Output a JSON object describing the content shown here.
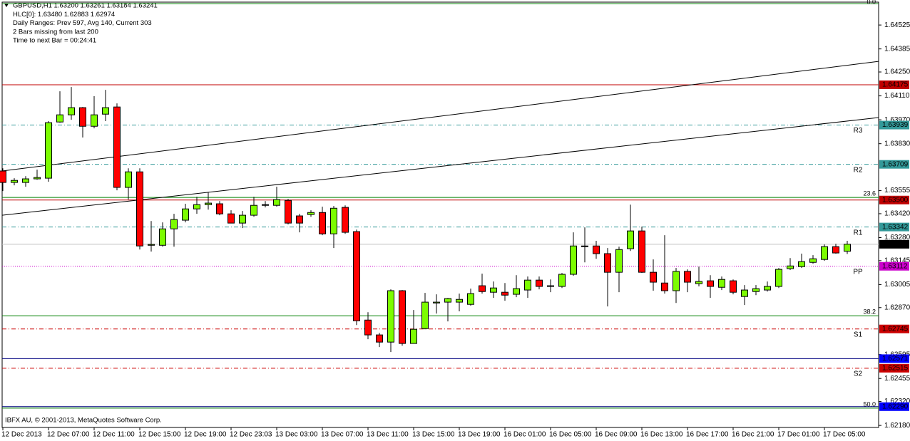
{
  "chart_data": {
    "type": "candlestick",
    "header": [
      "GBPUSD,H1  1.63200 1.63261 1.63184 1.63241",
      "HLC[0]: 1.63480 1.62883 1.62974",
      "Daily Ranges:  Prev 597,  Avg 140,   Current 303",
      "2 Bars missing from last 200",
      "Time to next Bar = 00:24:41"
    ],
    "footer": "IBFX AU, © 2001-2013, MetaQuotes Software Corp.",
    "categories": [
      "12 Dec 2013",
      null,
      null,
      null,
      "12 Dec 07:00",
      null,
      null,
      null,
      "12 Dec 11:00",
      null,
      null,
      null,
      "12 Dec 15:00",
      null,
      null,
      null,
      "12 Dec 19:00",
      null,
      null,
      null,
      "12 Dec 23:03",
      null,
      null,
      null,
      "13 Dec 03:00",
      null,
      null,
      null,
      "13 Dec 07:00",
      null,
      null,
      null,
      "13 Dec 11:00",
      null,
      null,
      null,
      "13 Dec 15:00",
      null,
      null,
      null,
      "13 Dec 19:00",
      null,
      null,
      null,
      "16 Dec 01:00",
      null,
      null,
      null,
      "16 Dec 05:00",
      null,
      null,
      null,
      "16 Dec 09:00",
      null,
      null,
      null,
      "16 Dec 13:00",
      null,
      null,
      null,
      "16 Dec 17:00",
      null,
      null,
      null,
      "16 Dec 21:00",
      null,
      null,
      null,
      "17 Dec 01:00",
      null,
      null,
      null,
      "17 Dec 05:00",
      null,
      null
    ],
    "open": [
      1.6367,
      1.63603,
      1.63603,
      1.63624,
      1.63628,
      1.63957,
      1.63999,
      1.64041,
      1.63932,
      1.64003,
      1.64045,
      1.63574,
      1.63665,
      1.63235,
      1.63235,
      1.63331,
      1.63382,
      1.63448,
      1.63473,
      1.63478,
      1.63419,
      1.63365,
      1.63411,
      1.63469,
      1.63469,
      1.63498,
      1.63407,
      1.63415,
      1.63427,
      1.63302,
      1.63457,
      1.63315,
      1.62797,
      1.6271,
      1.62668,
      1.62969,
      1.6266,
      1.62747,
      1.62897,
      1.62902,
      1.62902,
      1.62889,
      1.62998,
      1.6296,
      1.6296,
      1.62948,
      1.62973,
      1.63031,
      1.62998,
      1.62994,
      1.63065,
      1.63227,
      1.63231,
      1.63186,
      1.63077,
      1.63215,
      1.63319,
      1.63077,
      1.63014,
      1.62969,
      1.63082,
      1.6301,
      1.63027,
      1.62989,
      1.63027,
      1.62935,
      1.62964,
      1.62973,
      1.62994,
      1.63098,
      1.6311,
      1.63135,
      1.63152,
      1.63227,
      1.632
    ],
    "high": [
      1.63686,
      1.63628,
      1.6364,
      1.63678,
      1.63962,
      1.64137,
      1.64162,
      1.64045,
      1.64108,
      1.64145,
      1.64066,
      1.63686,
      1.63686,
      1.63377,
      1.63369,
      1.63419,
      1.63478,
      1.63519,
      1.63544,
      1.63494,
      1.6344,
      1.63436,
      1.63519,
      1.63494,
      1.63578,
      1.63507,
      1.63419,
      1.6344,
      1.63461,
      1.63465,
      1.63469,
      1.63327,
      1.62843,
      1.62722,
      1.62977,
      1.62973,
      1.62856,
      1.62956,
      1.62948,
      1.62927,
      1.62952,
      1.62981,
      1.63069,
      1.63023,
      1.63014,
      1.6306,
      1.63052,
      1.63052,
      1.63035,
      1.63073,
      1.63311,
      1.6334,
      1.63261,
      1.63219,
      1.63227,
      1.63473,
      1.63344,
      1.63152,
      1.63294,
      1.63102,
      1.63094,
      1.6311,
      1.6306,
      1.63052,
      1.63035,
      1.63002,
      1.63002,
      1.63023,
      1.63102,
      1.6316,
      1.63186,
      1.63177,
      1.6324,
      1.63244,
      1.63261
    ],
    "low": [
      1.63553,
      1.63586,
      1.63578,
      1.63619,
      1.63607,
      1.63953,
      1.6397,
      1.63866,
      1.6392,
      1.63962,
      1.63557,
      1.63503,
      1.6321,
      1.63198,
      1.63227,
      1.63227,
      1.63369,
      1.63419,
      1.63444,
      1.63411,
      1.63365,
      1.63336,
      1.63402,
      1.63457,
      1.63461,
      1.63357,
      1.63311,
      1.63402,
      1.63294,
      1.63219,
      1.63302,
      1.62768,
      1.62685,
      1.62639,
      1.6261,
      1.62647,
      1.6266,
      1.62743,
      1.62835,
      1.62789,
      1.62848,
      1.62881,
      1.62952,
      1.62927,
      1.6291,
      1.62931,
      1.62927,
      1.62977,
      1.6296,
      1.62985,
      1.63056,
      1.63135,
      1.63156,
      1.62877,
      1.6296,
      1.63202,
      1.63073,
      1.62969,
      1.62952,
      1.62897,
      1.6296,
      1.62994,
      1.62927,
      1.62973,
      1.62948,
      1.62885,
      1.62943,
      1.62964,
      1.62985,
      1.6309,
      1.63102,
      1.63127,
      1.63144,
      1.63186,
      1.63184
    ],
    "close": [
      1.63603,
      1.63615,
      1.63624,
      1.63632,
      1.63953,
      1.63999,
      1.64041,
      1.63932,
      1.63999,
      1.64041,
      1.63574,
      1.63665,
      1.63231,
      1.6324,
      1.63331,
      1.63386,
      1.63448,
      1.63473,
      1.63482,
      1.63419,
      1.63365,
      1.63411,
      1.63469,
      1.63473,
      1.63503,
      1.63365,
      1.63365,
      1.63427,
      1.63302,
      1.63452,
      1.63311,
      1.62793,
      1.6271,
      1.62668,
      1.62969,
      1.6266,
      1.62743,
      1.62902,
      1.62902,
      1.62923,
      1.62918,
      1.62952,
      1.62964,
      1.62985,
      1.62943,
      1.62981,
      1.63031,
      1.62994,
      1.62994,
      1.63065,
      1.63231,
      1.63231,
      1.63186,
      1.63077,
      1.6321,
      1.63319,
      1.63077,
      1.63019,
      1.62969,
      1.63082,
      1.63019,
      1.63023,
      1.62994,
      1.63035,
      1.6296,
      1.62973,
      1.62981,
      1.62994,
      1.63094,
      1.63114,
      1.63139,
      1.63156,
      1.63227,
      1.6319,
      1.63241
    ],
    "up_color": "#7cfc00",
    "down_color": "#ff0000",
    "ylim": [
      1.62168,
      1.64659
    ],
    "yticks": [
      1.64525,
      1.64385,
      {
        "value": 1.6425,
        "label": "1.64250"
      },
      {
        "value": 1.6411,
        "label": "1.64110"
      },
      {
        "value": 1.6397,
        "label": "1.63970"
      },
      {
        "value": 1.6383,
        "label": "1.63830"
      },
      1.63555,
      {
        "value": 1.6342,
        "label": "1.63420"
      },
      {
        "value": 1.6328,
        "label": "1.63280"
      },
      1.63145,
      1.63005,
      {
        "value": 1.6287,
        "label": "1.62870"
      },
      1.62595,
      1.62455,
      {
        "value": 1.6232,
        "label": "1.62320"
      },
      {
        "value": 1.6218,
        "label": "1.62180"
      }
    ],
    "grid": false,
    "fib_color": "#008000",
    "fib_levels": [
      {
        "label": "0.0",
        "value": 1.6465
      },
      {
        "label": "23.6",
        "value": 1.63515
      },
      {
        "label": "38.2",
        "value": 1.62822
      },
      {
        "label": "50.0",
        "value": 1.62281
      }
    ],
    "trendlines": [
      {
        "values": [
          1.6367,
          1.64312
        ]
      },
      {
        "values": [
          1.63411,
          1.63983
        ]
      }
    ],
    "levels": [
      {
        "value": 1.64175,
        "color": "#c00000",
        "style": "solid"
      },
      {
        "name": "R3",
        "value": 1.63939,
        "color": "#339999",
        "style": "dashdot"
      },
      {
        "name": "R2",
        "value": 1.63709,
        "color": "#339999",
        "style": "dashdot"
      },
      {
        "value": 1.635,
        "value_label": "1.63500",
        "color": "#c00000",
        "style": "solid"
      },
      {
        "name": "R1",
        "value": 1.63342,
        "color": "#339999",
        "style": "dashdot"
      },
      {
        "value": 1.63241,
        "color": "#c0c0c0",
        "style": "solid",
        "box_color": "#000000"
      },
      {
        "name": "PP",
        "value": 1.63112,
        "color": "#cc00cc",
        "style": "dotted"
      },
      {
        "name": "S1",
        "value": 1.62745,
        "color": "#cc0000",
        "style": "dashdot"
      },
      {
        "value": 1.62571,
        "color": "#000080",
        "style": "solid",
        "box_color": "#0000ff"
      },
      {
        "name": "S2",
        "value": 1.62515,
        "color": "#cc0000",
        "style": "dashdot"
      },
      {
        "value": 1.6229,
        "value_label": "1.62290",
        "color": "#000080",
        "style": "solid",
        "box_color": "#0000ff"
      }
    ]
  }
}
